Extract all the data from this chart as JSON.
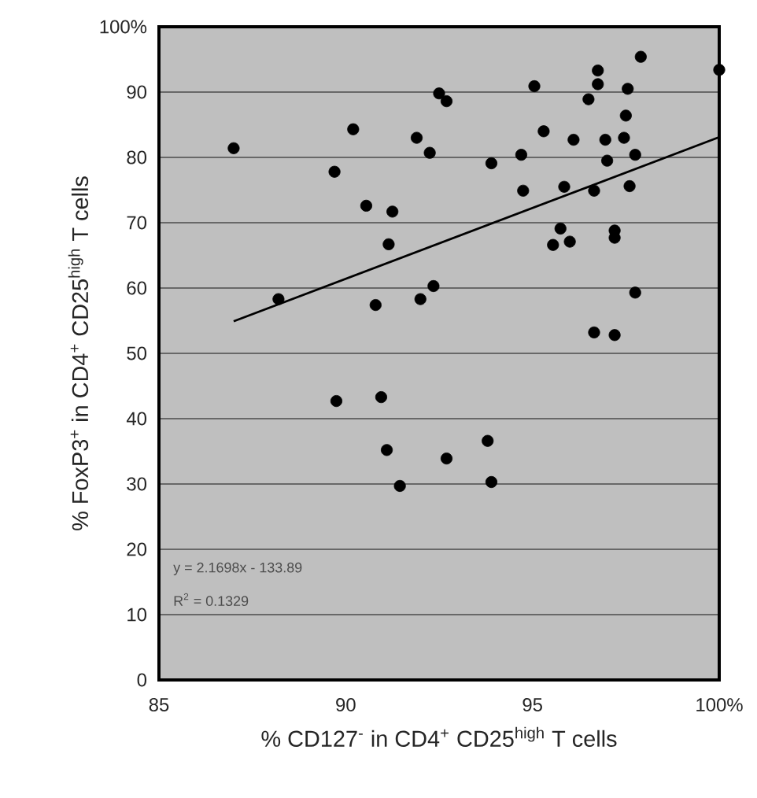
{
  "chart_data": {
    "type": "scatter",
    "xlabel": "% CD127$^{-}$ in CD4$^{+}$ CD25$^{high}$ T cells",
    "ylabel": "% FoxP3$^{+}$ in CD4$^{+}$ CD25$^{high}$ T cells",
    "xlim": [
      85,
      100
    ],
    "ylim": [
      0,
      100
    ],
    "xticks": [
      85,
      90,
      95,
      {
        "value": 100,
        "label": "100%"
      }
    ],
    "yticks": [
      0,
      10,
      20,
      30,
      40,
      50,
      60,
      70,
      80,
      90,
      {
        "value": 100,
        "label": "100%"
      }
    ],
    "grid": "y",
    "annotations": [
      "y = 2.1698x - 133.89",
      "R$^{2}$ = 0.1329"
    ],
    "series": [
      {
        "color": "#000000",
        "marker": "circle",
        "x": [
          87.0,
          88.2,
          89.7,
          90.2,
          90.55,
          91.25,
          91.15,
          90.8,
          91.9,
          92.25,
          92.0,
          92.35,
          92.5,
          92.7,
          89.75,
          90.95,
          91.1,
          91.45,
          92.7,
          93.8,
          93.9,
          93.9,
          94.7,
          94.75,
          95.05,
          95.3,
          95.85,
          96.1,
          95.75,
          95.55,
          96.0,
          96.5,
          96.65,
          96.65,
          96.75,
          96.75,
          96.95,
          97.0,
          97.2,
          97.2,
          97.2,
          97.45,
          97.5,
          97.55,
          97.75,
          97.6,
          97.75,
          97.9,
          100.0
        ],
        "values": [
          81.4,
          58.3,
          77.8,
          84.3,
          72.6,
          71.7,
          66.7,
          57.4,
          83.0,
          80.7,
          58.3,
          60.3,
          89.8,
          88.6,
          42.7,
          43.3,
          35.2,
          29.7,
          33.9,
          36.6,
          30.3,
          79.1,
          80.4,
          74.9,
          90.9,
          84.0,
          75.5,
          82.7,
          69.1,
          66.6,
          67.1,
          88.9,
          74.9,
          53.2,
          93.3,
          91.2,
          82.7,
          79.5,
          68.8,
          67.7,
          52.8,
          83.0,
          86.4,
          90.5,
          80.4,
          75.6,
          59.3,
          95.4,
          93.4
        ]
      },
      {
        "type": "line",
        "color": "#000000",
        "marker": "none",
        "line_style": "solid",
        "x": [
          87,
          100
        ],
        "values": [
          54.9,
          83.1
        ]
      }
    ]
  }
}
